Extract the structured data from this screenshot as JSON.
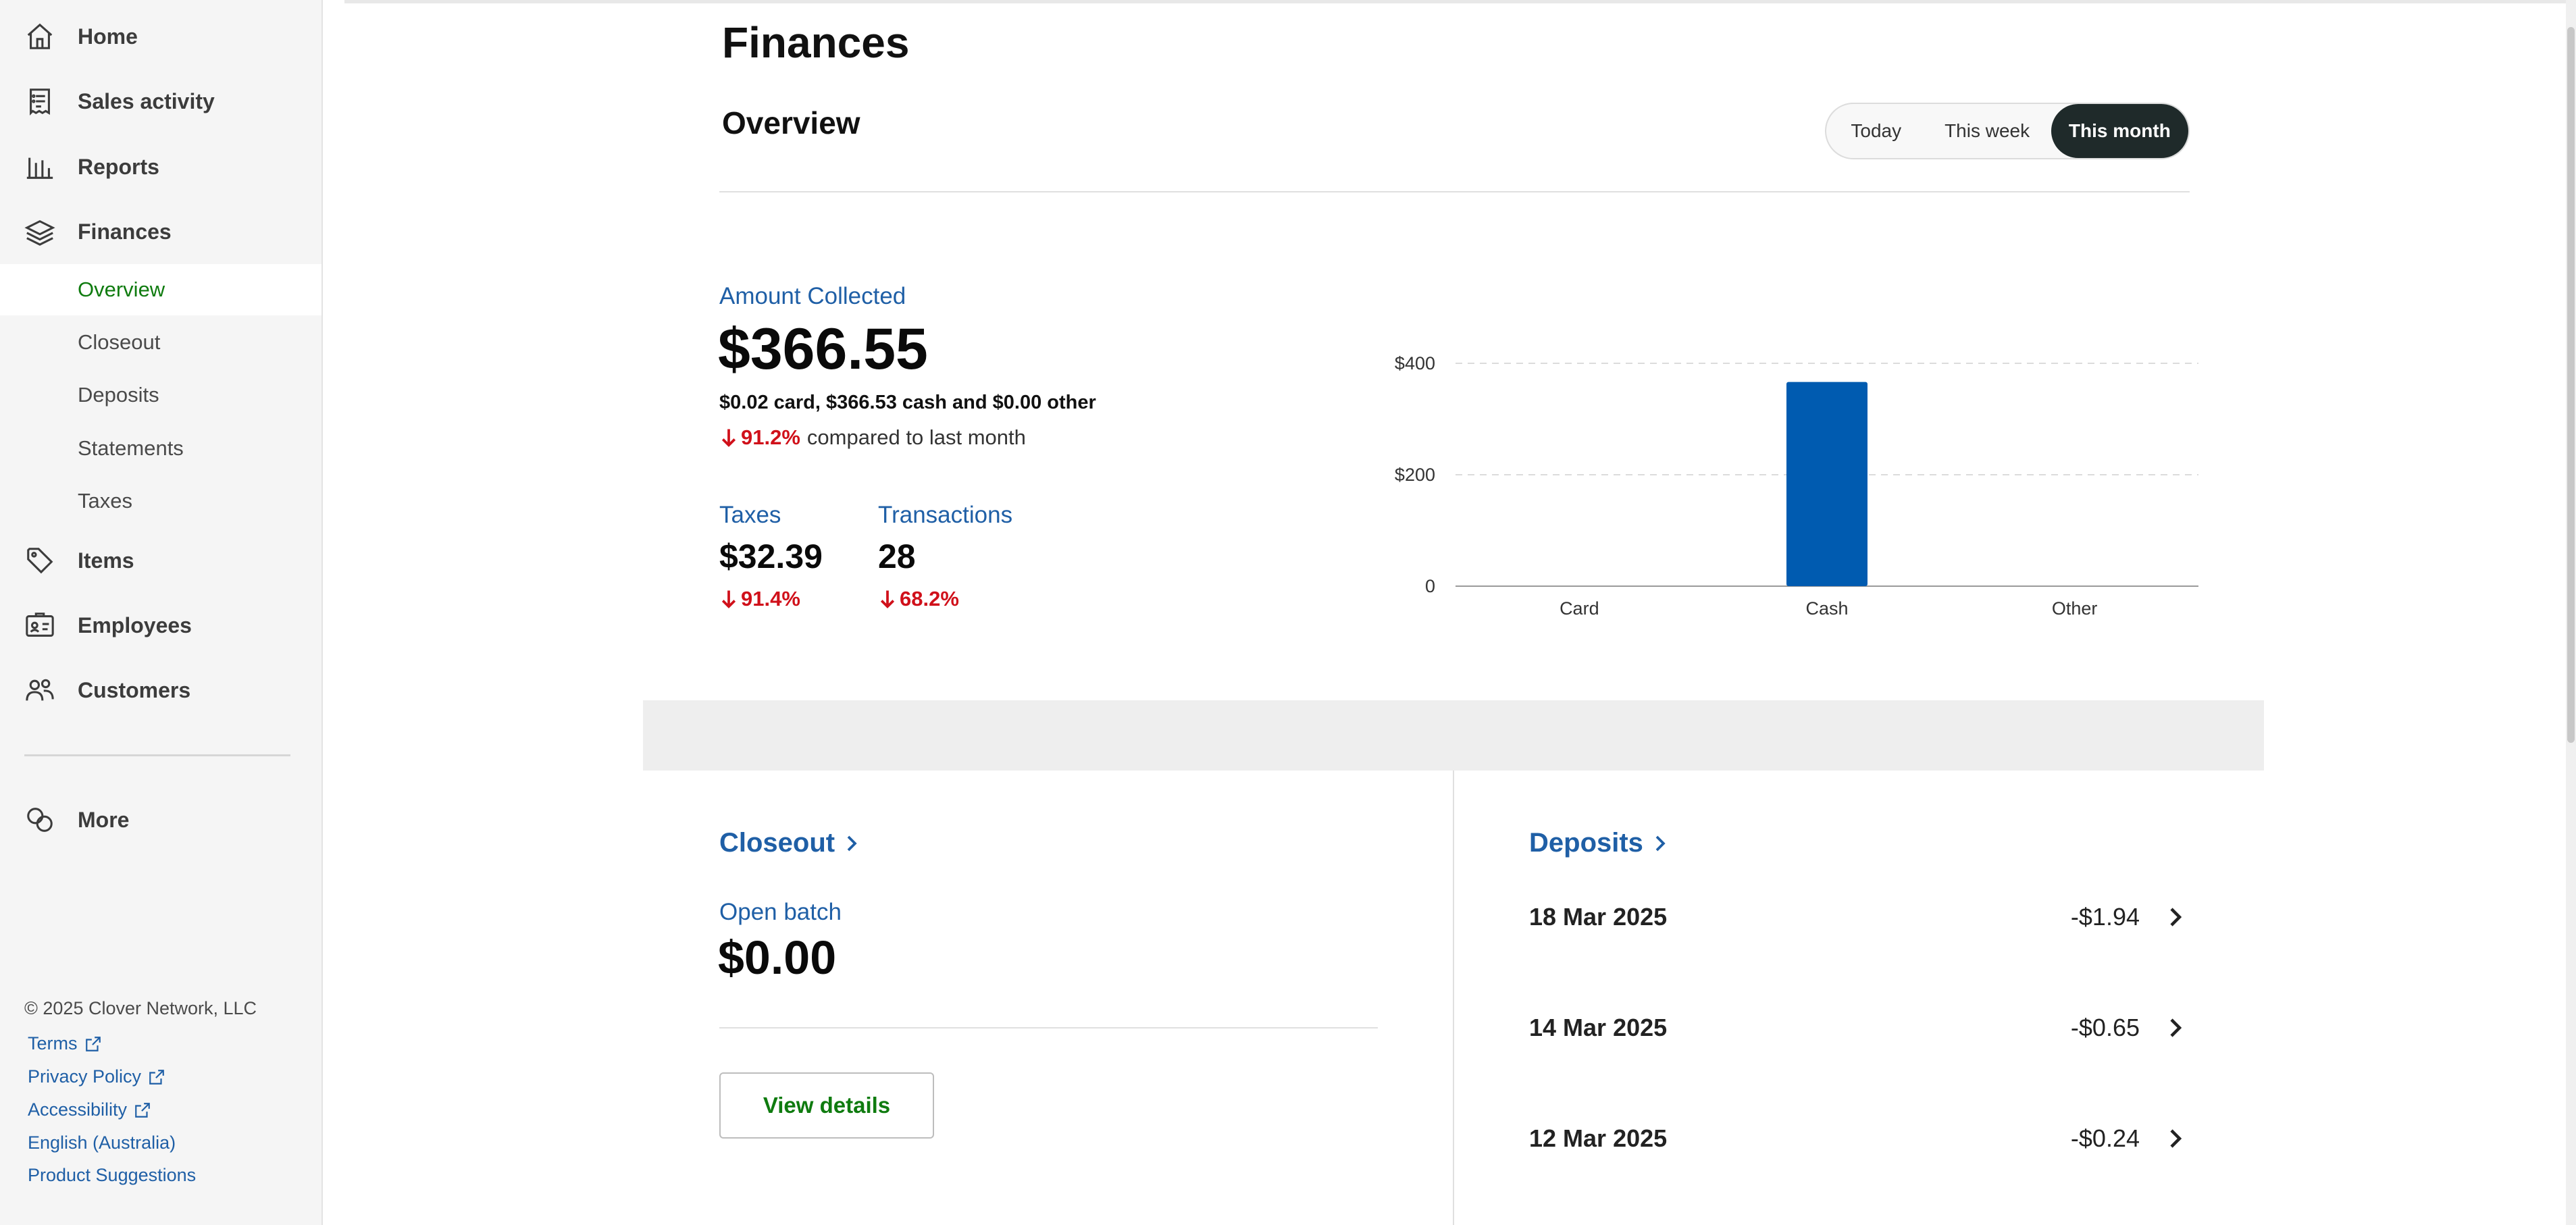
{
  "sidebar": {
    "items": [
      {
        "label": "Home",
        "icon": "home-icon"
      },
      {
        "label": "Sales activity",
        "icon": "receipt-icon"
      },
      {
        "label": "Reports",
        "icon": "bar-chart-icon"
      },
      {
        "label": "Finances",
        "icon": "layers-icon"
      },
      {
        "label": "Items",
        "icon": "tag-icon"
      },
      {
        "label": "Employees",
        "icon": "id-card-icon"
      },
      {
        "label": "Customers",
        "icon": "users-icon"
      },
      {
        "label": "More",
        "icon": "more-circles-icon"
      }
    ],
    "finances_sub": [
      {
        "label": "Overview",
        "active": true
      },
      {
        "label": "Closeout"
      },
      {
        "label": "Deposits"
      },
      {
        "label": "Statements"
      },
      {
        "label": "Taxes"
      }
    ],
    "footer": {
      "copyright": "© 2025 Clover Network, LLC",
      "links": {
        "terms": "Terms",
        "privacy": "Privacy Policy",
        "accessibility": "Accessibility",
        "language": "English (Australia)",
        "suggestions": "Product Suggestions"
      }
    }
  },
  "header": {
    "title": "Finances",
    "section": "Overview"
  },
  "range": {
    "today": "Today",
    "week": "This week",
    "month": "This month",
    "selected": "This month"
  },
  "overview": {
    "amount_label": "Amount Collected",
    "amount_value": "$366.55",
    "breakdown": "$0.02 card, $366.53 cash and $0.00 other",
    "amount_change": "91.2%",
    "amount_change_text": "compared to last month",
    "taxes_label": "Taxes",
    "taxes_value": "$32.39",
    "taxes_change": "91.4%",
    "transactions_label": "Transactions",
    "transactions_value": "28",
    "transactions_change": "68.2%",
    "trend_color": "#d0101a"
  },
  "chart_data": {
    "type": "bar",
    "categories": [
      "Card",
      "Cash",
      "Other"
    ],
    "values": [
      0.02,
      366.53,
      0.0
    ],
    "ylim": [
      0,
      400
    ],
    "yticks": [
      0,
      200,
      400
    ],
    "ytick_labels": [
      "0",
      "$200",
      "$400"
    ],
    "grid": true,
    "bar_color": "#005bb0"
  },
  "closeout": {
    "title": "Closeout",
    "open_batch_label": "Open batch",
    "open_batch_value": "$0.00",
    "view_details": "View details"
  },
  "deposits": {
    "title": "Deposits",
    "rows": [
      {
        "date": "18 Mar 2025",
        "amount": "-$1.94"
      },
      {
        "date": "14 Mar 2025",
        "amount": "-$0.65"
      },
      {
        "date": "12 Mar 2025",
        "amount": "-$0.24"
      }
    ]
  }
}
